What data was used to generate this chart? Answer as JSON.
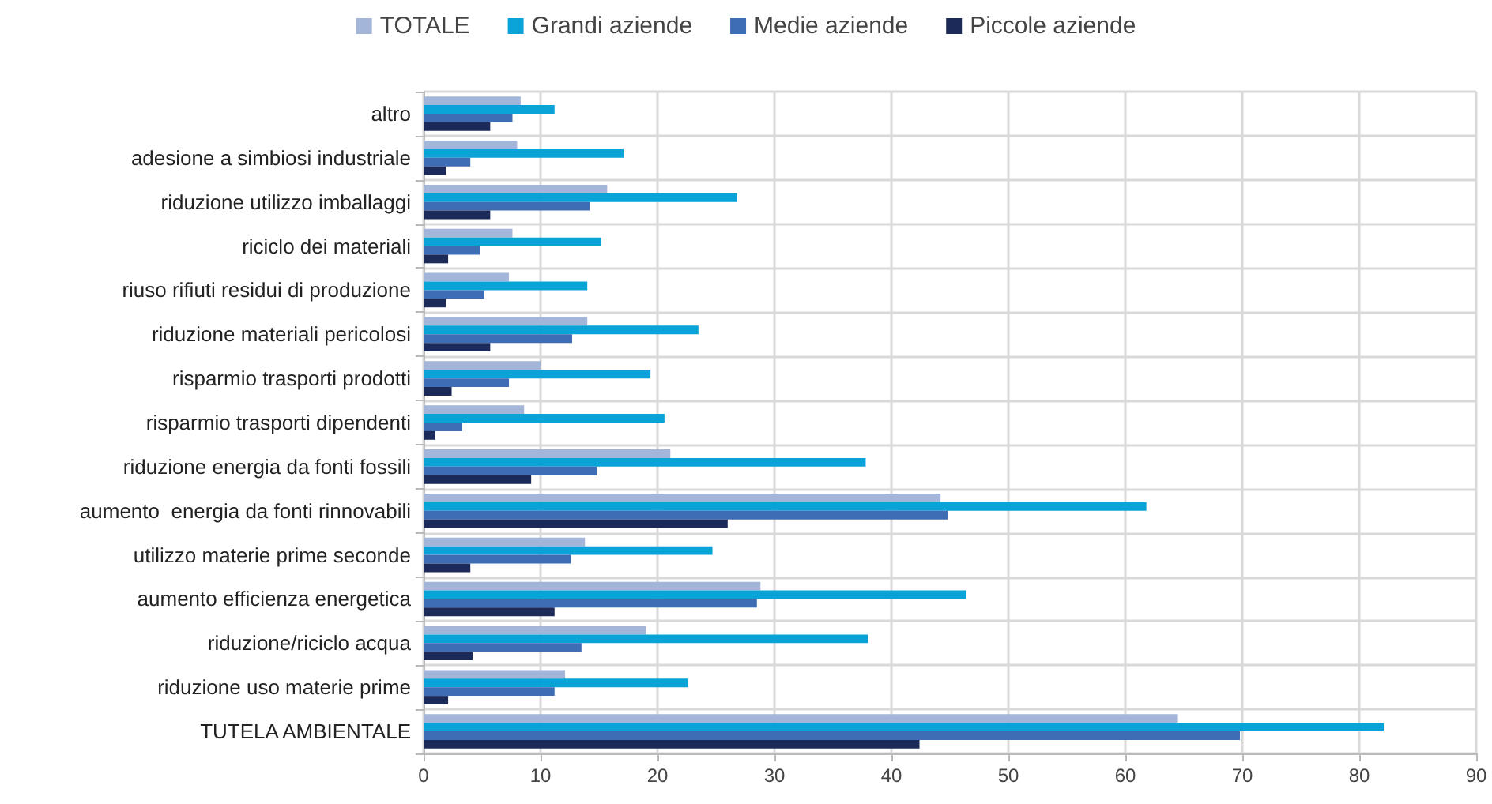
{
  "chart_data": {
    "type": "bar",
    "orientation": "horizontal",
    "categories": [
      "altro",
      "adesione a simbiosi industriale",
      "riduzione utilizzo imballaggi",
      "riciclo dei materiali",
      "riuso rifiuti residui di produzione",
      "riduzione materiali pericolosi",
      "risparmio trasporti prodotti",
      "risparmio trasporti dipendenti",
      "riduzione energia da fonti fossili",
      "aumento  energia da fonti rinnovabili",
      "utilizzo materie prime seconde",
      "aumento efficienza energetica",
      "riduzione/riciclo acqua",
      "riduzione uso materie prime",
      "TUTELA AMBIENTALE"
    ],
    "series": [
      {
        "name": "TOTALE",
        "color": "#a3b5d9",
        "values": [
          8.3,
          8.0,
          15.7,
          7.6,
          7.3,
          14.0,
          10.0,
          8.6,
          21.1,
          44.2,
          13.8,
          28.8,
          19.0,
          12.1,
          64.5
        ]
      },
      {
        "name": "Grandi aziende",
        "color": "#0aa3d8",
        "values": [
          11.2,
          17.1,
          26.8,
          15.2,
          14.0,
          23.5,
          19.4,
          20.6,
          37.8,
          61.8,
          24.7,
          46.4,
          38.0,
          22.6,
          82.1
        ]
      },
      {
        "name": "Medie aziende",
        "color": "#3e6db5",
        "values": [
          7.6,
          4.0,
          14.2,
          4.8,
          5.2,
          12.7,
          7.3,
          3.3,
          14.8,
          44.8,
          12.6,
          28.5,
          13.5,
          11.2,
          69.8
        ]
      },
      {
        "name": "Piccole aziende",
        "color": "#1c2a5a",
        "values": [
          5.7,
          1.9,
          5.7,
          2.1,
          1.9,
          5.7,
          2.4,
          1.0,
          9.2,
          26.0,
          4.0,
          11.2,
          4.2,
          2.1,
          42.4
        ]
      }
    ],
    "xlim": [
      0,
      90
    ],
    "xticks": [
      0,
      10,
      20,
      30,
      40,
      50,
      60,
      70,
      80,
      90
    ],
    "grid": true,
    "legend": "top"
  }
}
